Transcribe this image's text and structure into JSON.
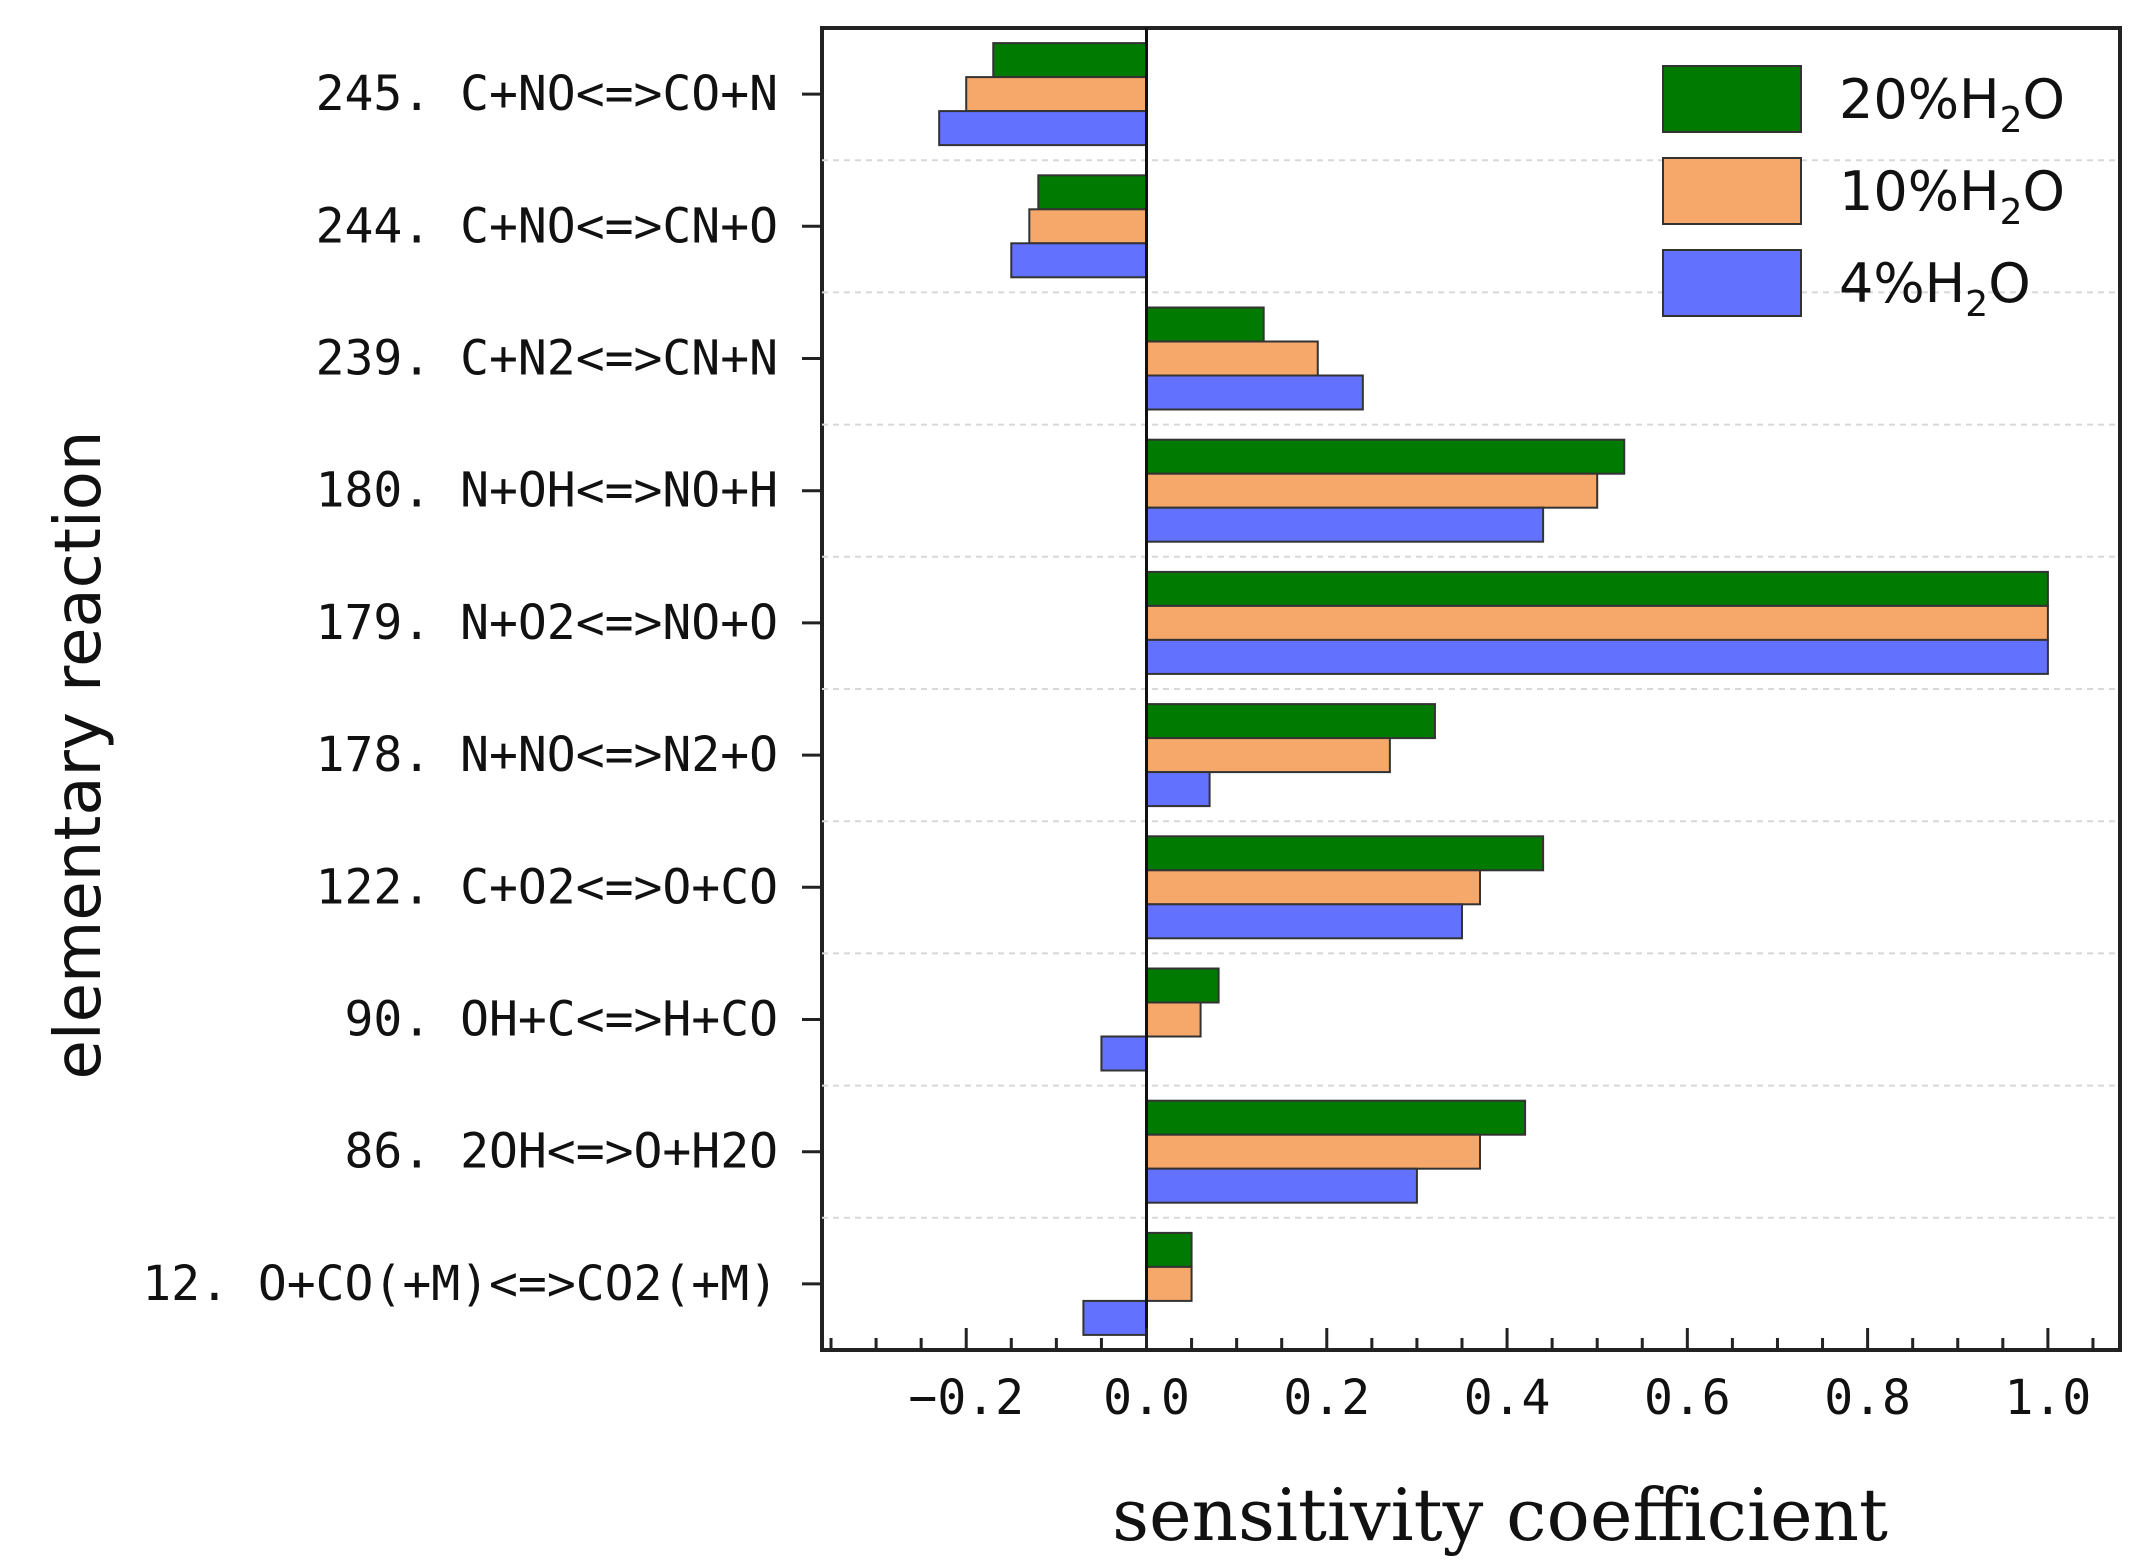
{
  "chart_data": {
    "type": "bar",
    "orientation": "horizontal",
    "title": "",
    "xlabel": "sensitivity coefficient",
    "ylabel": "elementary reaction",
    "xlim": [
      -0.36,
      1.08
    ],
    "xticks": [
      -0.2,
      0.0,
      0.2,
      0.4,
      0.6,
      0.8,
      1.0
    ],
    "xtick_labels": [
      "−0.2",
      "0.0",
      "0.2",
      "0.4",
      "0.6",
      "0.8",
      "1.0"
    ],
    "grid": "horizontal dashed separators",
    "legend_position": "top-right",
    "categories": [
      {
        "number": "245.",
        "reaction": "C+NO<=>CO+N"
      },
      {
        "number": "244.",
        "reaction": "C+NO<=>CN+O"
      },
      {
        "number": "239.",
        "reaction": "C+N2<=>CN+N"
      },
      {
        "number": "180.",
        "reaction": "N+OH<=>NO+H"
      },
      {
        "number": "179.",
        "reaction": "N+O2<=>NO+O"
      },
      {
        "number": "178.",
        "reaction": "N+NO<=>N2+O"
      },
      {
        "number": "122.",
        "reaction": "C+O2<=>O+CO"
      },
      {
        "number": "90.",
        "reaction": "OH+C<=>H+CO"
      },
      {
        "number": "86.",
        "reaction": "2OH<=>O+H2O"
      },
      {
        "number": "12.",
        "reaction": "O+CO(+M)<=>CO2(+M)"
      }
    ],
    "series": [
      {
        "name": "20%H2O",
        "label_main": "20%H",
        "label_sub": "2",
        "label_tail": "O",
        "color": "#007a00",
        "values": [
          -0.17,
          -0.12,
          0.13,
          0.53,
          1.0,
          0.32,
          0.44,
          0.08,
          0.42,
          0.05
        ]
      },
      {
        "name": "10%H2O",
        "label_main": "10%H",
        "label_sub": "2",
        "label_tail": "O",
        "color": "#f5a86a",
        "values": [
          -0.2,
          -0.13,
          0.19,
          0.5,
          1.0,
          0.27,
          0.37,
          0.06,
          0.37,
          0.05
        ]
      },
      {
        "name": "4%H2O",
        "label_main": "4%H",
        "label_sub": "2",
        "label_tail": "O",
        "color": "#6272ff",
        "values": [
          -0.23,
          -0.15,
          0.24,
          0.44,
          1.0,
          0.07,
          0.35,
          -0.05,
          0.3,
          -0.07
        ]
      }
    ]
  }
}
